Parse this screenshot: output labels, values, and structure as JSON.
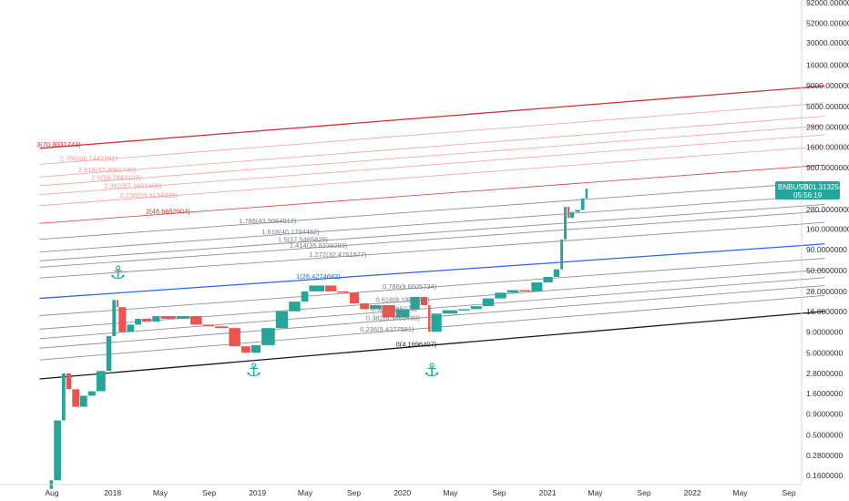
{
  "chart_data": {
    "type": "line",
    "log_scale": true,
    "symbol": "BNBUSD",
    "price_badge": {
      "value": "501.3132543",
      "countdown": "05:56:19",
      "color": "#26a69a",
      "price": 501.3132543
    },
    "y_ticks": [
      {
        "label": "92000.0000000",
        "value": 92000
      },
      {
        "label": "52000.0000000",
        "value": 52000
      },
      {
        "label": "30000.0000000",
        "value": 30000
      },
      {
        "label": "16000.0000000",
        "value": 16000
      },
      {
        "label": "9000.0000000",
        "value": 9000
      },
      {
        "label": "5000.0000000",
        "value": 5000
      },
      {
        "label": "2800.0000000",
        "value": 2800
      },
      {
        "label": "1600.0000000",
        "value": 1600
      },
      {
        "label": "900.0000000",
        "value": 900
      },
      {
        "label": "280.0000000",
        "value": 280
      },
      {
        "label": "160.0000000",
        "value": 160
      },
      {
        "label": "90.0000000",
        "value": 90
      },
      {
        "label": "50.0000000",
        "value": 50
      },
      {
        "label": "28.0000000",
        "value": 28
      },
      {
        "label": "16.0000000",
        "value": 16
      },
      {
        "label": "9.0000000",
        "value": 9
      },
      {
        "label": "5.0000000",
        "value": 5
      },
      {
        "label": "2.8000000",
        "value": 2.8
      },
      {
        "label": "1.6000000",
        "value": 1.6
      },
      {
        "label": "0.9000000",
        "value": 0.9
      },
      {
        "label": "0.5000000",
        "value": 0.5
      },
      {
        "label": "0.2800000",
        "value": 0.28
      },
      {
        "label": "0.1600000",
        "value": 0.16
      }
    ],
    "x_ticks": [
      {
        "label": "Aug",
        "date": "2017-08-01"
      },
      {
        "label": "2018",
        "date": "2018-01-01"
      },
      {
        "label": "May",
        "date": "2018-05-01"
      },
      {
        "label": "Sep",
        "date": "2018-09-01"
      },
      {
        "label": "2019",
        "date": "2019-01-01"
      },
      {
        "label": "May",
        "date": "2019-05-01"
      },
      {
        "label": "Sep",
        "date": "2019-09-01"
      },
      {
        "label": "2020",
        "date": "2020-01-01"
      },
      {
        "label": "May",
        "date": "2020-05-01"
      },
      {
        "label": "Sep",
        "date": "2020-09-01"
      },
      {
        "label": "2021",
        "date": "2021-01-01"
      },
      {
        "label": "May",
        "date": "2021-05-01"
      },
      {
        "label": "Sep",
        "date": "2021-09-01"
      },
      {
        "label": "2022",
        "date": "2022-01-01"
      },
      {
        "label": "May",
        "date": "2022-05-01"
      },
      {
        "label": "Sep",
        "date": "2022-09-01"
      }
    ],
    "price_series": [
      {
        "date": "2017-07-25",
        "close": 0.11
      },
      {
        "date": "2017-08-05",
        "close": 0.14
      },
      {
        "date": "2017-08-25",
        "close": 0.75
      },
      {
        "date": "2017-09-05",
        "close": 2.8
      },
      {
        "date": "2017-09-20",
        "close": 1.8
      },
      {
        "date": "2017-10-10",
        "close": 1.1
      },
      {
        "date": "2017-10-30",
        "close": 1.5
      },
      {
        "date": "2017-11-20",
        "close": 1.7
      },
      {
        "date": "2017-12-15",
        "close": 3.0
      },
      {
        "date": "2017-12-30",
        "close": 8.0
      },
      {
        "date": "2018-01-10",
        "close": 22.0
      },
      {
        "date": "2018-01-15",
        "close": 18.0
      },
      {
        "date": "2018-02-05",
        "close": 9.0
      },
      {
        "date": "2018-02-25",
        "close": 11.0
      },
      {
        "date": "2018-03-15",
        "close": 13.0
      },
      {
        "date": "2018-04-10",
        "close": 12.0
      },
      {
        "date": "2018-05-01",
        "close": 14.0
      },
      {
        "date": "2018-06-10",
        "close": 13.0
      },
      {
        "date": "2018-07-15",
        "close": 14.0
      },
      {
        "date": "2018-08-15",
        "close": 11.0
      },
      {
        "date": "2018-09-15",
        "close": 10.5
      },
      {
        "date": "2018-10-20",
        "close": 10.0
      },
      {
        "date": "2018-11-20",
        "close": 6.0
      },
      {
        "date": "2018-12-15",
        "close": 5.0
      },
      {
        "date": "2019-01-10",
        "close": 6.2
      },
      {
        "date": "2019-02-15",
        "close": 10.0
      },
      {
        "date": "2019-03-20",
        "close": 16.0
      },
      {
        "date": "2019-04-20",
        "close": 21.0
      },
      {
        "date": "2019-05-10",
        "close": 28.0
      },
      {
        "date": "2019-06-20",
        "close": 33.0
      },
      {
        "date": "2019-07-20",
        "close": 28.0
      },
      {
        "date": "2019-08-20",
        "close": 27.0
      },
      {
        "date": "2019-09-15",
        "close": 20.0
      },
      {
        "date": "2019-10-10",
        "close": 17.0
      },
      {
        "date": "2019-11-10",
        "close": 19.0
      },
      {
        "date": "2019-12-15",
        "close": 13.5
      },
      {
        "date": "2020-01-20",
        "close": 17.0
      },
      {
        "date": "2020-02-15",
        "close": 24.0
      },
      {
        "date": "2020-03-05",
        "close": 19.0
      },
      {
        "date": "2020-03-13",
        "close": 9.0
      },
      {
        "date": "2020-04-10",
        "close": 15.0
      },
      {
        "date": "2020-05-20",
        "close": 16.5
      },
      {
        "date": "2020-06-20",
        "close": 17.0
      },
      {
        "date": "2020-07-20",
        "close": 18.5
      },
      {
        "date": "2020-08-20",
        "close": 23.0
      },
      {
        "date": "2020-09-20",
        "close": 27.0
      },
      {
        "date": "2020-10-20",
        "close": 29.0
      },
      {
        "date": "2020-11-20",
        "close": 28.0
      },
      {
        "date": "2020-12-20",
        "close": 36.0
      },
      {
        "date": "2021-01-15",
        "close": 42.0
      },
      {
        "date": "2021-02-01",
        "close": 52.0
      },
      {
        "date": "2021-02-10",
        "close": 120.0
      },
      {
        "date": "2021-02-19",
        "close": 300.0
      },
      {
        "date": "2021-02-25",
        "close": 220.0
      },
      {
        "date": "2021-03-10",
        "close": 260.0
      },
      {
        "date": "2021-03-25",
        "close": 275.0
      },
      {
        "date": "2021-04-05",
        "close": 380.0
      },
      {
        "date": "2021-04-13",
        "close": 501.3
      }
    ],
    "trendlines": [
      {
        "role": "base",
        "color": "#131722",
        "from": {
          "date": "2017-07-01",
          "price": 2.4
        },
        "to": {
          "date": "2022-11-30",
          "price": 16.0
        }
      },
      {
        "role": "mid",
        "color": "#2962ff",
        "from": {
          "date": "2017-07-01",
          "price": 23.0
        },
        "to": {
          "date": "2022-11-30",
          "price": 106.0
        }
      },
      {
        "role": "top",
        "color": "#d32f2f",
        "from": {
          "date": "2017-07-01",
          "price": 1550.0
        },
        "to": {
          "date": "2022-11-30",
          "price": 8900.0
        }
      }
    ],
    "fib_levels": [
      {
        "label": "0(4.1696407)",
        "color": "#131722"
      },
      {
        "label": "0.236(5.4377581)",
        "color": "#787b86"
      },
      {
        "label": "0.382(6.3865499)",
        "color": "#787b86"
      },
      {
        "label": "0.5(7.2665276)",
        "color": "#787b86"
      },
      {
        "label": "0.618(8.1987158)",
        "color": "#787b86"
      },
      {
        "label": "0.786(9.6605734)",
        "color": "#787b86"
      },
      {
        "label": "1(26.4274682)",
        "color": "#2962ff"
      },
      {
        "label": "1.272(32.4761577)",
        "color": "#787b86"
      },
      {
        "label": "1.414(35.8339293)",
        "color": "#787b86"
      },
      {
        "label": "1.5(37.5465825)",
        "color": "#787b86"
      },
      {
        "label": "1.618(40.1704462)",
        "color": "#787b86"
      },
      {
        "label": "1.786(43.9064012)",
        "color": "#787b86"
      },
      {
        "label": "2(48.6652904)",
        "color": "#d32f2f"
      },
      {
        "label": "2.236(53.9134338)",
        "color": "#ef9a9a"
      },
      {
        "label": "2.382(57.1601406)",
        "color": "#ef9a9a"
      },
      {
        "label": "2.5(59.7843103)",
        "color": "#ef9a9a"
      },
      {
        "label": "2.618(62.4082740)",
        "color": "#ef9a9a"
      },
      {
        "label": "2.786(66.1442291)",
        "color": "#ef9a9a"
      },
      {
        "label": "3(70.9031243)",
        "color": "#d32f2f"
      }
    ],
    "anchors": [
      {
        "name": "anchor-2018",
        "date": "2018-01-12",
        "price": 48
      },
      {
        "name": "anchor-2019",
        "date": "2018-12-20",
        "price": 3.1
      },
      {
        "name": "anchor-2020",
        "date": "2020-03-13",
        "price": 3.1
      }
    ],
    "colors": {
      "up": "#26a69a",
      "down": "#ef5350",
      "grid": "#d6d8de",
      "text": "#2a2e39"
    }
  }
}
